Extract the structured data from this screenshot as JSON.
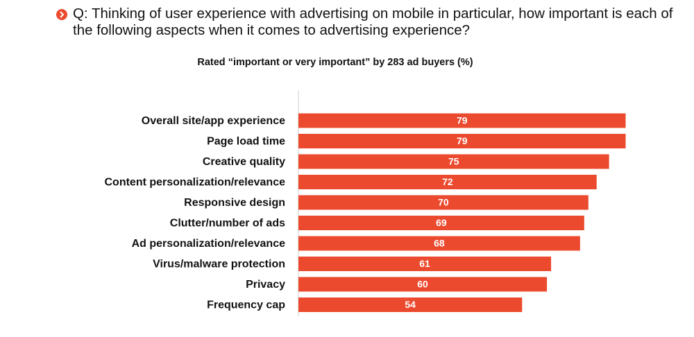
{
  "chart_data": {
    "type": "bar",
    "orientation": "horizontal",
    "title": "Q: Thinking of user experience with advertising on mobile in particular, how important is each of the following aspects when it comes to advertising experience?",
    "subtitle": "Rated “important or very important” by 283 ad buyers (%)",
    "categories": [
      "Overall site/app experience",
      "Page load time",
      "Creative quality",
      "Content personalization/relevance",
      "Responsive design",
      "Clutter/number of ads",
      "Ad personalization/relevance",
      "Virus/malware protection",
      "Privacy",
      "Frequency cap"
    ],
    "values": [
      79,
      79,
      75,
      72,
      70,
      69,
      68,
      61,
      60,
      54
    ],
    "color": "#ec4a2f",
    "xlim": [
      0,
      95
    ]
  }
}
